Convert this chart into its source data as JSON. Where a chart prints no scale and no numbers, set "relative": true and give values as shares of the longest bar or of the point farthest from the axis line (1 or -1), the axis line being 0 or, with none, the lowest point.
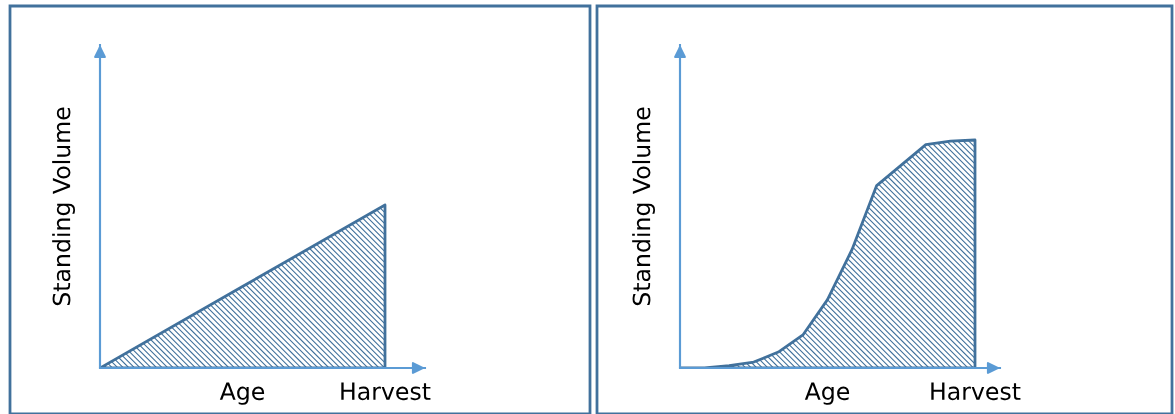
{
  "chart_data": [
    {
      "type": "area",
      "relative": true,
      "ylabel": "Standing Volume",
      "categories": [
        null,
        "Age",
        "Harvest"
      ],
      "series": [
        {
          "color": "#41719c",
          "values": [
            0,
            0.5,
            1
          ]
        }
      ]
    },
    {
      "type": "area",
      "relative": true,
      "ylabel": "Standing Volume",
      "categories": [
        null,
        null,
        null,
        null,
        null,
        null,
        "Age",
        null,
        null,
        null,
        null,
        null,
        "Harvest"
      ],
      "series": [
        {
          "color": "#41719c",
          "values": [
            0,
            0,
            0.01,
            0.026,
            0.07,
            0.145,
            0.3,
            0.52,
            0.8,
            0.89,
            0.98,
            0.995,
            1
          ]
        }
      ]
    }
  ]
}
